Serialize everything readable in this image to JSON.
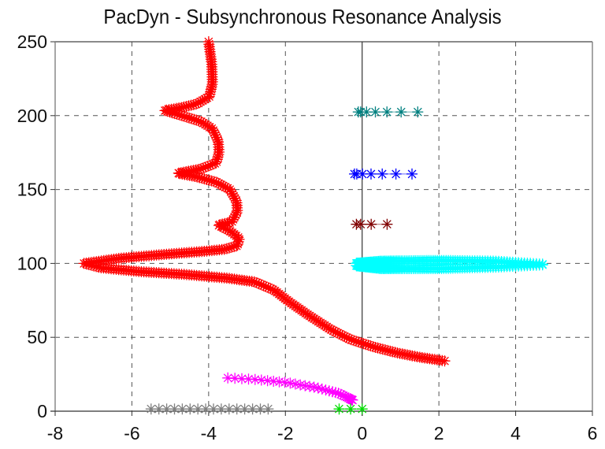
{
  "chart_data": {
    "type": "scatter",
    "title": "PacDyn - Subsynchronous Resonance Analysis",
    "xlabel": "",
    "ylabel": "",
    "xlim": [
      -8,
      6
    ],
    "ylim": [
      0,
      250
    ],
    "xticks": [
      -8,
      -6,
      -4,
      -2,
      0,
      2,
      4,
      6
    ],
    "yticks": [
      0,
      50,
      100,
      150,
      200,
      250
    ],
    "xtick_labels": [
      "-8",
      "-6",
      "-4",
      "-2",
      "0",
      "2",
      "4",
      "6"
    ],
    "ytick_labels": [
      "0",
      "50",
      "100",
      "150",
      "200",
      "250"
    ],
    "grid": true,
    "marker": "asterisk",
    "series": [
      {
        "name": "red-locus",
        "color": "#ff0000",
        "points": [
          [
            -4.0,
            250
          ],
          [
            -3.92,
            235
          ],
          [
            -3.9,
            222
          ],
          [
            -3.98,
            213
          ],
          [
            -4.3,
            208
          ],
          [
            -4.7,
            205.5
          ],
          [
            -5.15,
            203.5
          ],
          [
            -4.7,
            200
          ],
          [
            -4.2,
            196
          ],
          [
            -3.9,
            191
          ],
          [
            -3.75,
            183
          ],
          [
            -3.73,
            175
          ],
          [
            -3.8,
            168
          ],
          [
            -4.2,
            164
          ],
          [
            -4.8,
            161
          ],
          [
            -4.3,
            158.5
          ],
          [
            -3.8,
            155
          ],
          [
            -3.45,
            150
          ],
          [
            -3.27,
            142
          ],
          [
            -3.25,
            135
          ],
          [
            -3.4,
            128
          ],
          [
            -3.75,
            126
          ],
          [
            -3.45,
            122
          ],
          [
            -3.2,
            117
          ],
          [
            -3.25,
            112
          ],
          [
            -3.6,
            109.5
          ],
          [
            -4.2,
            108
          ],
          [
            -5.2,
            106
          ],
          [
            -6.3,
            103.5
          ],
          [
            -7.25,
            100
          ],
          [
            -6.8,
            97
          ],
          [
            -5.8,
            94.5
          ],
          [
            -4.6,
            92.5
          ],
          [
            -3.5,
            90
          ],
          [
            -2.8,
            87.5
          ],
          [
            -2.3,
            82
          ],
          [
            -1.9,
            74
          ],
          [
            -1.4,
            65
          ],
          [
            -0.8,
            55
          ],
          [
            -0.3,
            48.5
          ],
          [
            0.3,
            43.5
          ],
          [
            0.9,
            39.5
          ],
          [
            1.5,
            36.5
          ],
          [
            2.15,
            34
          ]
        ],
        "density": 3.2
      },
      {
        "name": "teal-mode",
        "color": "#008080",
        "points": [
          [
            -0.1,
            202.5
          ],
          [
            1.45,
            202.5
          ]
        ],
        "density": 12,
        "dense_near_start": true
      },
      {
        "name": "blue-mode",
        "color": "#0000ff",
        "points": [
          [
            -0.2,
            160.5
          ],
          [
            1.3,
            160.5
          ]
        ],
        "density": 12,
        "dense_near_start": true
      },
      {
        "name": "darkred-mode",
        "color": "#800000",
        "points": [
          [
            -0.15,
            126.5
          ],
          [
            0.65,
            126.5
          ]
        ],
        "density": 14,
        "dense_near_start": true
      },
      {
        "name": "cyan-upper",
        "color": "#00ffff",
        "points": [
          [
            -0.15,
            100
          ],
          [
            0.5,
            101.5
          ],
          [
            2.0,
            102
          ],
          [
            3.5,
            101.5
          ],
          [
            4.7,
            99.5
          ]
        ],
        "density": 2.2,
        "dense_near_start": true
      },
      {
        "name": "cyan-lower",
        "color": "#00ffff",
        "points": [
          [
            -0.15,
            98.5
          ],
          [
            0.5,
            96.5
          ],
          [
            2.0,
            96.5
          ],
          [
            3.5,
            97.5
          ],
          [
            4.7,
            99
          ]
        ],
        "density": 2.2,
        "dense_near_start": true
      },
      {
        "name": "magenta-locus",
        "color": "#ff00ff",
        "points": [
          [
            -3.5,
            22.5
          ],
          [
            -2.8,
            21.5
          ],
          [
            -2.0,
            19.5
          ],
          [
            -1.2,
            16
          ],
          [
            -0.6,
            12
          ],
          [
            -0.25,
            7.5
          ]
        ],
        "density": 5,
        "dense_near_end": true
      },
      {
        "name": "green-mode",
        "color": "#00dd00",
        "points": [
          [
            -0.6,
            1.5
          ],
          [
            0.0,
            1.5
          ]
        ],
        "density": 25
      },
      {
        "name": "gray-mode",
        "color": "#808080",
        "points": [
          [
            -5.5,
            1.5
          ],
          [
            -2.45,
            1.5
          ]
        ],
        "density": 10
      }
    ]
  }
}
